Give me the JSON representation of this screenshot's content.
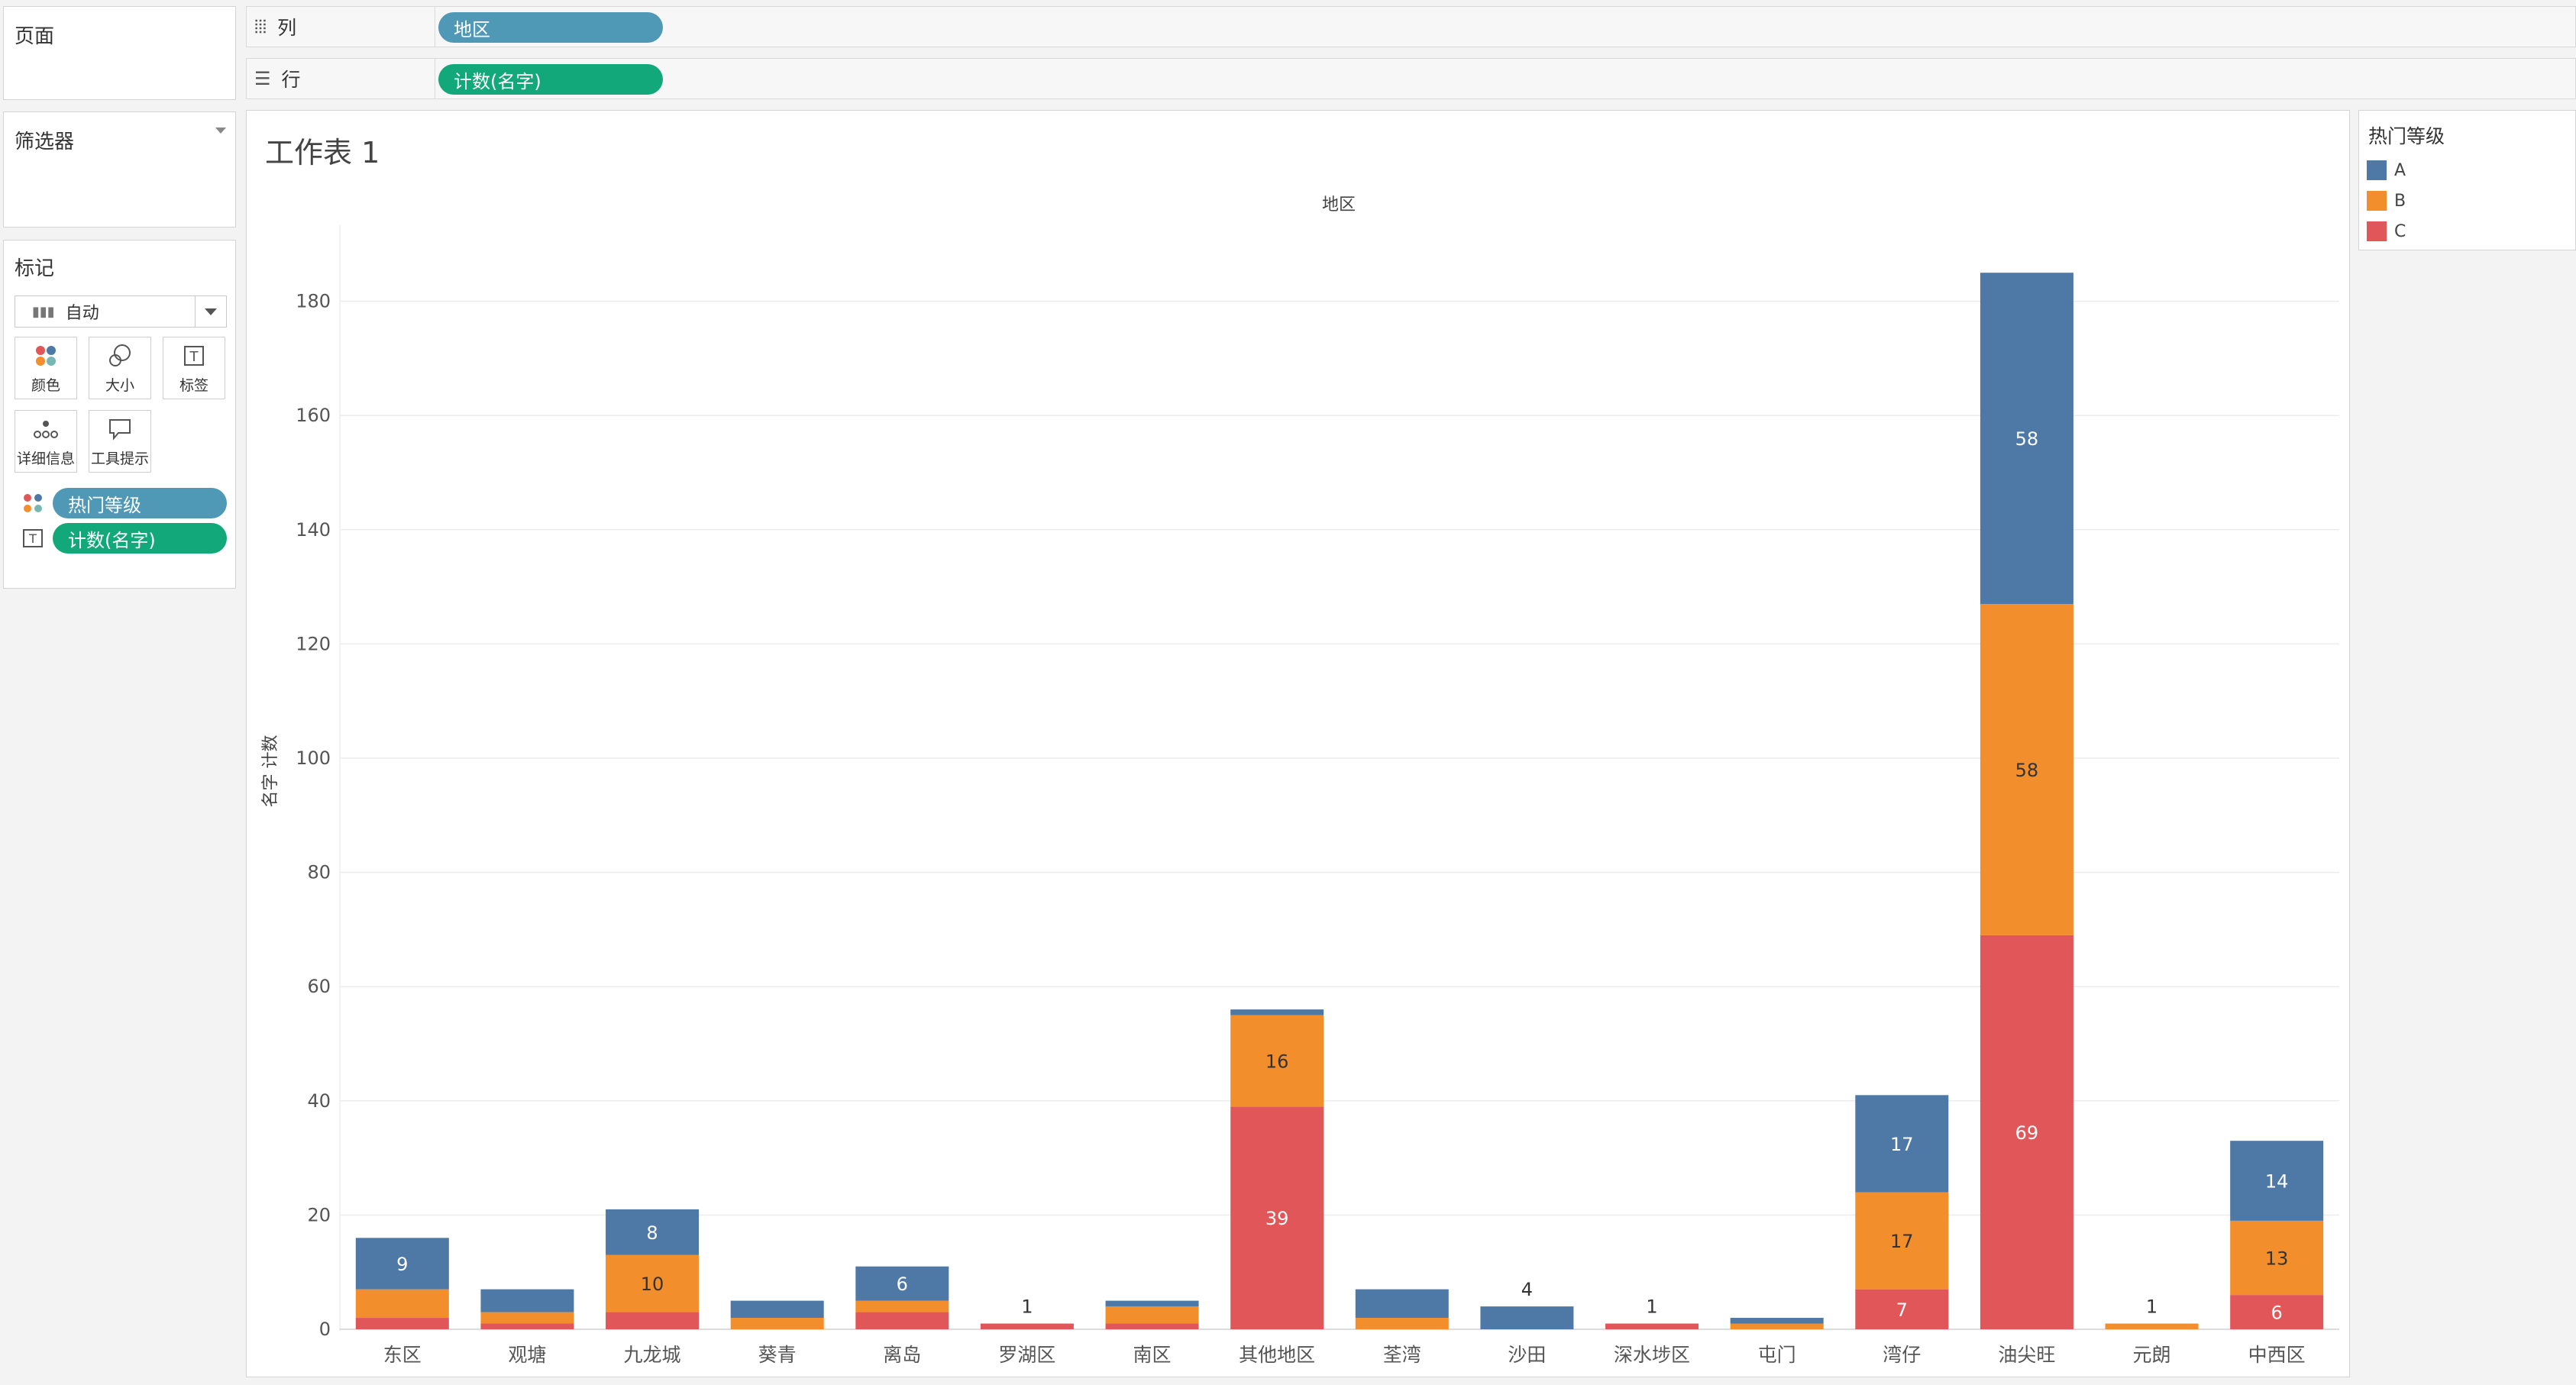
{
  "pages_panel": {
    "title": "页面"
  },
  "filters_panel": {
    "title": "筛选器"
  },
  "columns_shelf": {
    "label": "列",
    "icon": "columns-icon",
    "pill": "地区"
  },
  "rows_shelf": {
    "label": "行",
    "icon": "rows-icon",
    "pill": "计数(名字)"
  },
  "marks_panel": {
    "title": "标记",
    "mark_type": "自动",
    "buttons": [
      "颜色",
      "大小",
      "标签",
      "详细信息",
      "工具提示"
    ],
    "color_field": "热门等级",
    "label_field": "计数(名字)"
  },
  "legend": {
    "title": "热门等级",
    "items": [
      {
        "name": "A",
        "color": "#4e79a7"
      },
      {
        "name": "B",
        "color": "#f28e2b"
      },
      {
        "name": "C",
        "color": "#e15759"
      }
    ]
  },
  "worksheet_title": "工作表 1",
  "chart_data": {
    "type": "bar",
    "stacked": true,
    "title": "工作表 1",
    "column_header": "地区",
    "ylabel": "名字 计数",
    "xlabel": "",
    "ylim": [
      0,
      190
    ],
    "yticks": [
      0,
      20,
      40,
      60,
      80,
      100,
      120,
      140,
      160,
      180
    ],
    "grid": true,
    "categories": [
      "东区",
      "观塘",
      "九龙城",
      "葵青",
      "离岛",
      "罗湖区",
      "南区",
      "其他地区",
      "荃湾",
      "沙田",
      "深水埗区",
      "屯门",
      "湾仔",
      "油尖旺",
      "元朗",
      "中西区"
    ],
    "series": [
      {
        "name": "C",
        "color": "#e15759",
        "values": [
          2,
          1,
          3,
          0,
          3,
          1,
          1,
          39,
          0,
          0,
          1,
          0,
          7,
          69,
          0,
          6
        ]
      },
      {
        "name": "B",
        "color": "#f28e2b",
        "values": [
          5,
          2,
          10,
          2,
          2,
          0,
          3,
          16,
          2,
          0,
          0,
          1,
          17,
          58,
          1,
          13
        ]
      },
      {
        "name": "A",
        "color": "#4e79a7",
        "values": [
          9,
          4,
          8,
          3,
          6,
          0,
          1,
          1,
          5,
          4,
          0,
          1,
          17,
          58,
          0,
          14
        ]
      }
    ],
    "data_labels": [
      {
        "category": "东区",
        "series": "A",
        "text": "9"
      },
      {
        "category": "九龙城",
        "series": "B",
        "text": "10"
      },
      {
        "category": "九龙城",
        "series": "A",
        "text": "8"
      },
      {
        "category": "离岛",
        "series": "A",
        "text": "6"
      },
      {
        "category": "罗湖区",
        "series": "total",
        "text": "1"
      },
      {
        "category": "其他地区",
        "series": "C",
        "text": "39"
      },
      {
        "category": "其他地区",
        "series": "B",
        "text": "16"
      },
      {
        "category": "沙田",
        "series": "total",
        "text": "4"
      },
      {
        "category": "深水埗区",
        "series": "total",
        "text": "1"
      },
      {
        "category": "湾仔",
        "series": "C",
        "text": "7"
      },
      {
        "category": "湾仔",
        "series": "B",
        "text": "17"
      },
      {
        "category": "湾仔",
        "series": "A",
        "text": "17"
      },
      {
        "category": "油尖旺",
        "series": "C",
        "text": "69"
      },
      {
        "category": "油尖旺",
        "series": "B",
        "text": "58"
      },
      {
        "category": "油尖旺",
        "series": "A",
        "text": "58"
      },
      {
        "category": "元朗",
        "series": "total",
        "text": "1"
      },
      {
        "category": "中西区",
        "series": "C",
        "text": "6"
      },
      {
        "category": "中西区",
        "series": "B",
        "text": "13"
      },
      {
        "category": "中西区",
        "series": "A",
        "text": "14"
      }
    ]
  }
}
